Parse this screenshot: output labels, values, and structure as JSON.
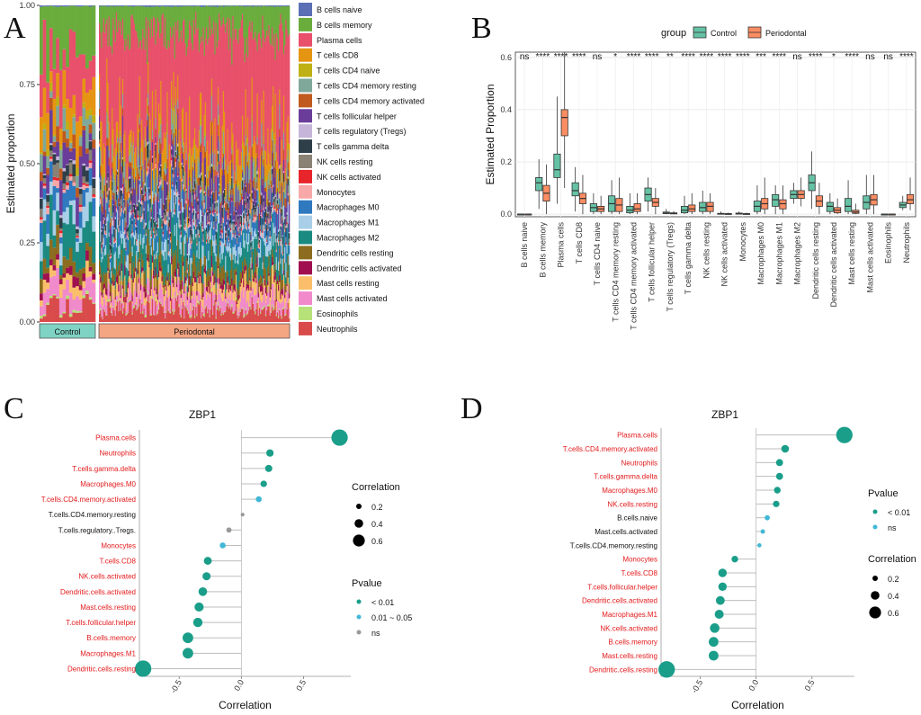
{
  "panels": {
    "A": "A",
    "B": "B",
    "C": "C",
    "D": "D"
  },
  "chart_data": [
    {
      "panel": "A",
      "type": "bar",
      "stacked": true,
      "ylabel": "Estimated proportion",
      "yticks": [
        "0.00",
        "0.25",
        "0.50",
        "0.75",
        "1.00"
      ],
      "ylim": [
        0,
        1
      ],
      "groups": [
        {
          "name": "Control",
          "color": "#7fd3c4"
        },
        {
          "name": "Periodontal",
          "color": "#f4a582"
        }
      ],
      "samples": {
        "Control": 17,
        "Periodontal": 180
      },
      "series": [
        {
          "name": "Neutrophils",
          "color": "#d94b4b",
          "mean": 0.04
        },
        {
          "name": "Eosinophils",
          "color": "#b7e27a",
          "mean": 0.005
        },
        {
          "name": "Mast cells activated",
          "color": "#f08acb",
          "mean": 0.04
        },
        {
          "name": "Mast cells resting",
          "color": "#fbbf6b",
          "mean": 0.03
        },
        {
          "name": "Dendritic cells activated",
          "color": "#a0104f",
          "mean": 0.015
        },
        {
          "name": "Dendritic cells resting",
          "color": "#8c6d1f",
          "mean": 0.04
        },
        {
          "name": "Macrophages M2",
          "color": "#1b8a80",
          "mean": 0.07
        },
        {
          "name": "Macrophages M1",
          "color": "#a9cfe8",
          "mean": 0.04
        },
        {
          "name": "Macrophages M0",
          "color": "#2f79bf",
          "mean": 0.04
        },
        {
          "name": "Monocytes",
          "color": "#f8a8a8",
          "mean": 0.01
        },
        {
          "name": "NK cells activated",
          "color": "#e8252b",
          "mean": 0.005
        },
        {
          "name": "NK cells resting",
          "color": "#8a8275",
          "mean": 0.02
        },
        {
          "name": "T cells gamma delta",
          "color": "#2e3f4a",
          "mean": 0.02
        },
        {
          "name": "T cells regulatory (Tregs)",
          "color": "#c6b5d9",
          "mean": 0.005
        },
        {
          "name": "T cells follicular helper",
          "color": "#6a3d9a",
          "mean": 0.06
        },
        {
          "name": "T cells CD4 memory activated",
          "color": "#c05a1f",
          "mean": 0.02
        },
        {
          "name": "T cells CD4 memory resting",
          "color": "#7fa89a",
          "mean": 0.04
        },
        {
          "name": "T cells CD4 naive",
          "color": "#bfb015",
          "mean": 0.015
        },
        {
          "name": "T cells CD8",
          "color": "#e69512",
          "mean": 0.08
        },
        {
          "name": "Plasma cells",
          "color": "#e8506b",
          "mean": 0.35
        },
        {
          "name": "B cells memory",
          "color": "#6aad3d",
          "mean": 0.09
        },
        {
          "name": "B cells naive",
          "color": "#5b6fb5",
          "mean": 0.003
        }
      ]
    },
    {
      "panel": "B",
      "type": "box",
      "legend_title": "group",
      "groups": [
        {
          "name": "Control",
          "color": "#66c2a5"
        },
        {
          "name": "Periodontal",
          "color": "#fc8d62"
        }
      ],
      "ylabel": "Estimated Proportion",
      "ylim": [
        -0.01,
        0.62
      ],
      "yticks": [
        0.0,
        0.2,
        0.4,
        0.6
      ],
      "ytick_labels": [
        "0.0",
        "0.2",
        "0.4",
        "0.6"
      ],
      "categories": [
        "B cells naive",
        "B cells memory",
        "Plasma cells",
        "T cells CD8",
        "T cells CD4 naive",
        "T cells CD4 memory resting",
        "T cells CD4 memory activated",
        "T cells follicular helper",
        "T cells regulatory (Tregs)",
        "T cells gamma delta",
        "NK cells resting",
        "NK cells activated",
        "Monocytes",
        "Macrophages M0",
        "Macrophages M1",
        "Macrophages M2",
        "Dendritic cells resting",
        "Dendritic cells activated",
        "Mast cells resting",
        "Mast cells activated",
        "Eosinophils",
        "Neutrophils"
      ],
      "significance": [
        "ns",
        "****",
        "****",
        "****",
        "ns",
        "*",
        "****",
        "****",
        "**",
        "****",
        "****",
        "****",
        "****",
        "***",
        "****",
        "ns",
        "****",
        "*",
        "****",
        "ns",
        "ns",
        "****"
      ],
      "series": [
        {
          "name": "Control",
          "boxes": [
            [
              0,
              0,
              0,
              0,
              0
            ],
            [
              0.02,
              0.09,
              0.12,
              0.14,
              0.21
            ],
            [
              0.04,
              0.14,
              0.17,
              0.23,
              0.45
            ],
            [
              0.01,
              0.07,
              0.09,
              0.12,
              0.18
            ],
            [
              0,
              0.01,
              0.025,
              0.04,
              0.08
            ],
            [
              0,
              0.01,
              0.04,
              0.07,
              0.13
            ],
            [
              0,
              0.005,
              0.015,
              0.03,
              0.08
            ],
            [
              0.01,
              0.05,
              0.075,
              0.1,
              0.14
            ],
            [
              0,
              0.002,
              0.004,
              0.008,
              0.02
            ],
            [
              0,
              0.005,
              0.015,
              0.03,
              0.07
            ],
            [
              0,
              0.01,
              0.025,
              0.045,
              0.09
            ],
            [
              0,
              0,
              0.001,
              0.003,
              0.01
            ],
            [
              0,
              0,
              0.002,
              0.004,
              0.01
            ],
            [
              0,
              0.01,
              0.03,
              0.05,
              0.11
            ],
            [
              0,
              0.03,
              0.055,
              0.075,
              0.11
            ],
            [
              0.04,
              0.06,
              0.075,
              0.09,
              0.12
            ],
            [
              0.02,
              0.09,
              0.12,
              0.15,
              0.24
            ],
            [
              0,
              0.01,
              0.03,
              0.045,
              0.08
            ],
            [
              0,
              0.01,
              0.03,
              0.06,
              0.13
            ],
            [
              0,
              0.02,
              0.045,
              0.07,
              0.15
            ],
            [
              0,
              0,
              0,
              0,
              0
            ],
            [
              0.015,
              0.025,
              0.035,
              0.045,
              0.07
            ]
          ]
        },
        {
          "name": "Periodontal",
          "boxes": [
            [
              0,
              0,
              0,
              0,
              0
            ],
            [
              0,
              0.05,
              0.08,
              0.11,
              0.19
            ],
            [
              0.1,
              0.3,
              0.37,
              0.4,
              0.62
            ],
            [
              0,
              0.04,
              0.06,
              0.08,
              0.15
            ],
            [
              0,
              0.01,
              0.02,
              0.03,
              0.07
            ],
            [
              0,
              0.01,
              0.035,
              0.06,
              0.14
            ],
            [
              0,
              0.01,
              0.02,
              0.04,
              0.08
            ],
            [
              0,
              0.03,
              0.045,
              0.06,
              0.1
            ],
            [
              0,
              0.001,
              0.003,
              0.005,
              0.012
            ],
            [
              0,
              0.01,
              0.02,
              0.035,
              0.08
            ],
            [
              0,
              0.01,
              0.03,
              0.045,
              0.08
            ],
            [
              0,
              0,
              0.001,
              0.002,
              0.006
            ],
            [
              0,
              0,
              0.001,
              0.002,
              0.006
            ],
            [
              0,
              0.02,
              0.04,
              0.06,
              0.14
            ],
            [
              0,
              0.02,
              0.04,
              0.055,
              0.11
            ],
            [
              0.03,
              0.06,
              0.075,
              0.09,
              0.14
            ],
            [
              0,
              0.03,
              0.05,
              0.07,
              0.12
            ],
            [
              0,
              0.005,
              0.015,
              0.025,
              0.06
            ],
            [
              0,
              0.003,
              0.008,
              0.015,
              0.04
            ],
            [
              0,
              0.035,
              0.055,
              0.075,
              0.15
            ],
            [
              0,
              0,
              0,
              0,
              0
            ],
            [
              0.015,
              0.04,
              0.055,
              0.075,
              0.14
            ]
          ]
        }
      ]
    },
    {
      "panel": "C",
      "type": "lollipop",
      "title": "ZBP1",
      "xlabel": "Correlation",
      "xlim": [
        -0.82,
        0.88
      ],
      "xticks": [
        -0.5,
        0.0,
        0.5
      ],
      "xtick_labels": [
        "-0.5",
        "0.0",
        "0.5"
      ],
      "size_legend_title": "Correlation",
      "size_legend": [
        "0.2",
        "0.4",
        "0.6"
      ],
      "pvalue_legend_title": "Pvalue",
      "pvalue_legend": [
        {
          "label": "< 0.01",
          "color": "#1a9e8a"
        },
        {
          "label": "0.01 ~ 0.05",
          "color": "#42b8d6"
        },
        {
          "label": "ns",
          "color": "#999999"
        }
      ],
      "points": [
        {
          "label": "Plasma.cells",
          "value": 0.79,
          "p": "< 0.01",
          "sig": true
        },
        {
          "label": "Neutrophils",
          "value": 0.23,
          "p": "< 0.01",
          "sig": true
        },
        {
          "label": "T.cells.gamma.delta",
          "value": 0.22,
          "p": "< 0.01",
          "sig": true
        },
        {
          "label": "Macrophages.M0",
          "value": 0.18,
          "p": "< 0.01",
          "sig": true
        },
        {
          "label": "T.cells.CD4.memory.activated",
          "value": 0.14,
          "p": "0.01 ~ 0.05",
          "sig": true
        },
        {
          "label": "T.cells.CD4.memory.resting",
          "value": 0.01,
          "p": "ns",
          "sig": false
        },
        {
          "label": "T.cells.regulatory..Tregs.",
          "value": -0.1,
          "p": "ns",
          "sig": false
        },
        {
          "label": "Monocytes",
          "value": -0.15,
          "p": "0.01 ~ 0.05",
          "sig": true
        },
        {
          "label": "T.cells.CD8",
          "value": -0.27,
          "p": "< 0.01",
          "sig": true
        },
        {
          "label": "NK.cells.activated",
          "value": -0.28,
          "p": "< 0.01",
          "sig": true
        },
        {
          "label": "Dendritic.cells.activated",
          "value": -0.31,
          "p": "< 0.01",
          "sig": true
        },
        {
          "label": "Mast.cells.resting",
          "value": -0.34,
          "p": "< 0.01",
          "sig": true
        },
        {
          "label": "T.cells.follicular.helper",
          "value": -0.35,
          "p": "< 0.01",
          "sig": true
        },
        {
          "label": "B.cells.memory",
          "value": -0.43,
          "p": "< 0.01",
          "sig": true
        },
        {
          "label": "Macrophages.M1",
          "value": -0.43,
          "p": "< 0.01",
          "sig": true
        },
        {
          "label": "Dendritic.cells.resting",
          "value": -0.79,
          "p": "< 0.01",
          "sig": true
        }
      ]
    },
    {
      "panel": "D",
      "type": "lollipop",
      "title": "ZBP1",
      "xlabel": "Correlation",
      "xlim": [
        -0.85,
        0.88
      ],
      "xticks": [
        -0.5,
        0.0,
        0.5
      ],
      "xtick_labels": [
        "-0.5",
        "0.0",
        "0.5"
      ],
      "size_legend_title": "Correlation",
      "size_legend": [
        "0.2",
        "0.4",
        "0.6"
      ],
      "pvalue_legend_title": "Pvalue",
      "pvalue_legend": [
        {
          "label": "< 0.01",
          "color": "#1a9e8a"
        },
        {
          "label": "ns",
          "color": "#42b8d6"
        }
      ],
      "points": [
        {
          "label": "Plasma.cells",
          "value": 0.79,
          "p": "< 0.01",
          "sig": true
        },
        {
          "label": "T.cells.CD4.memory.activated",
          "value": 0.26,
          "p": "< 0.01",
          "sig": true
        },
        {
          "label": "Neutrophils",
          "value": 0.21,
          "p": "< 0.01",
          "sig": true
        },
        {
          "label": "T.cells.gamma.delta",
          "value": 0.21,
          "p": "< 0.01",
          "sig": true
        },
        {
          "label": "Macrophages.M0",
          "value": 0.19,
          "p": "< 0.01",
          "sig": true
        },
        {
          "label": "NK.cells.resting",
          "value": 0.18,
          "p": "< 0.01",
          "sig": true
        },
        {
          "label": "B.cells.naive",
          "value": 0.1,
          "p": "ns",
          "sig": false
        },
        {
          "label": "Mast.cells.activated",
          "value": 0.06,
          "p": "ns",
          "sig": false
        },
        {
          "label": "T.cells.CD4.memory.resting",
          "value": 0.03,
          "p": "ns",
          "sig": false
        },
        {
          "label": "Monocytes",
          "value": -0.19,
          "p": "< 0.01",
          "sig": true
        },
        {
          "label": "T.cells.CD8",
          "value": -0.3,
          "p": "< 0.01",
          "sig": true
        },
        {
          "label": "T.cells.follicular.helper",
          "value": -0.3,
          "p": "< 0.01",
          "sig": true
        },
        {
          "label": "Dendritic.cells.activated",
          "value": -0.32,
          "p": "< 0.01",
          "sig": true
        },
        {
          "label": "Macrophages.M1",
          "value": -0.33,
          "p": "< 0.01",
          "sig": true
        },
        {
          "label": "NK.cells.activated",
          "value": -0.37,
          "p": "< 0.01",
          "sig": true
        },
        {
          "label": "B.cells.memory",
          "value": -0.38,
          "p": "< 0.01",
          "sig": true
        },
        {
          "label": "Mast.cells.resting",
          "value": -0.38,
          "p": "< 0.01",
          "sig": true
        },
        {
          "label": "Dendritic.cells.resting",
          "value": -0.8,
          "p": "< 0.01",
          "sig": true
        }
      ]
    }
  ]
}
